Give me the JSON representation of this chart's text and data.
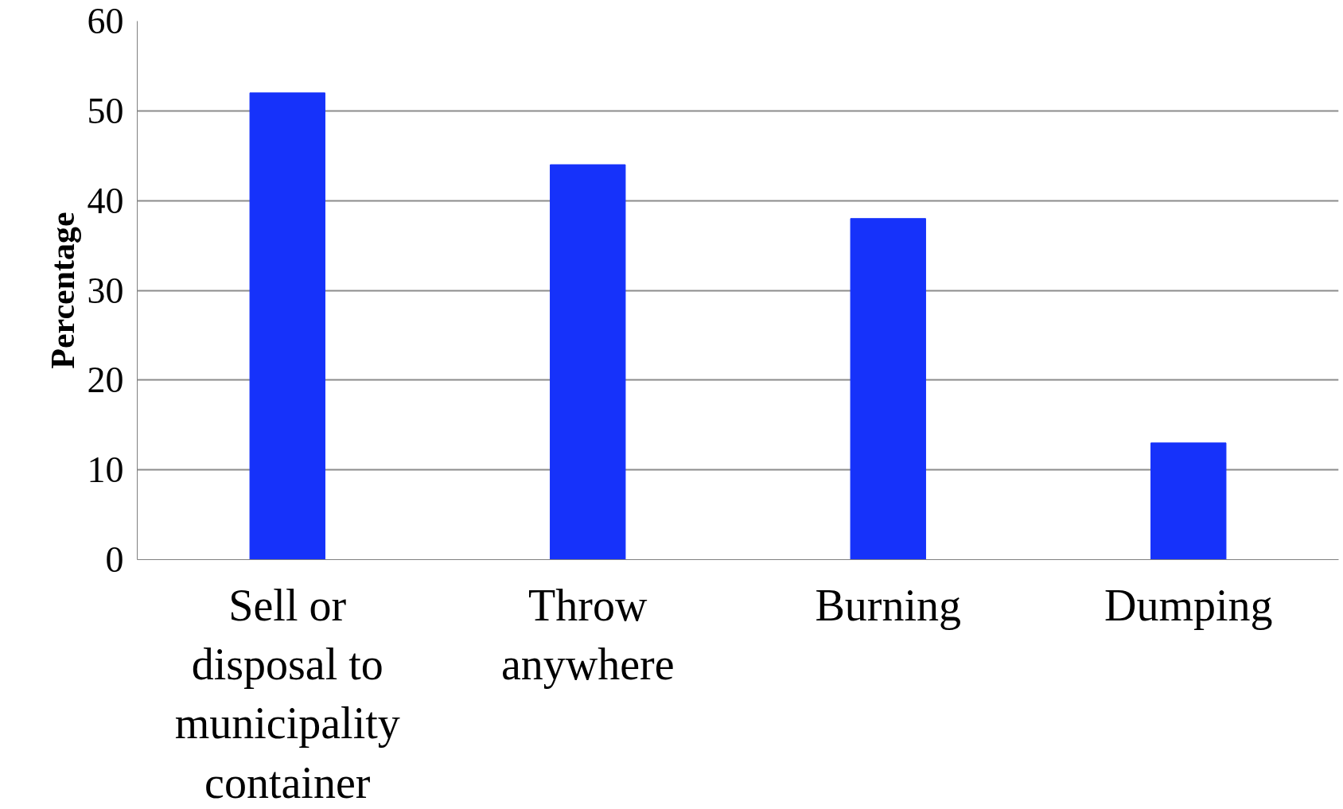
{
  "chart_data": {
    "type": "bar",
    "ylabel": "Percentage",
    "categories": [
      "Sell or disposal to municipality container",
      "Throw anywhere",
      "Burning",
      "Dumping"
    ],
    "values": [
      52,
      44,
      38,
      13
    ],
    "color": "#1632fa",
    "ylim": [
      0,
      60
    ],
    "yticks": [
      0,
      10,
      20,
      30,
      40,
      50,
      60
    ],
    "grid": "y"
  }
}
